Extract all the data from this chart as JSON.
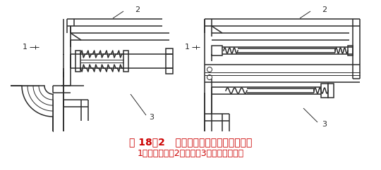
{
  "title_line1": "图 18－2   冷却系统用波纹补偿器示意图",
  "title_line2": "1－冷却水管；2－炉壳；3－波纹补偿器。",
  "label1": "1",
  "label2": "2",
  "label3": "3",
  "bg_color": "#ffffff",
  "line_color": "#2a2a2a",
  "title_color": "#cc0000",
  "title_fontsize": 10,
  "subtitle_fontsize": 9,
  "fig_width": 5.4,
  "fig_height": 2.42,
  "dpi": 100
}
